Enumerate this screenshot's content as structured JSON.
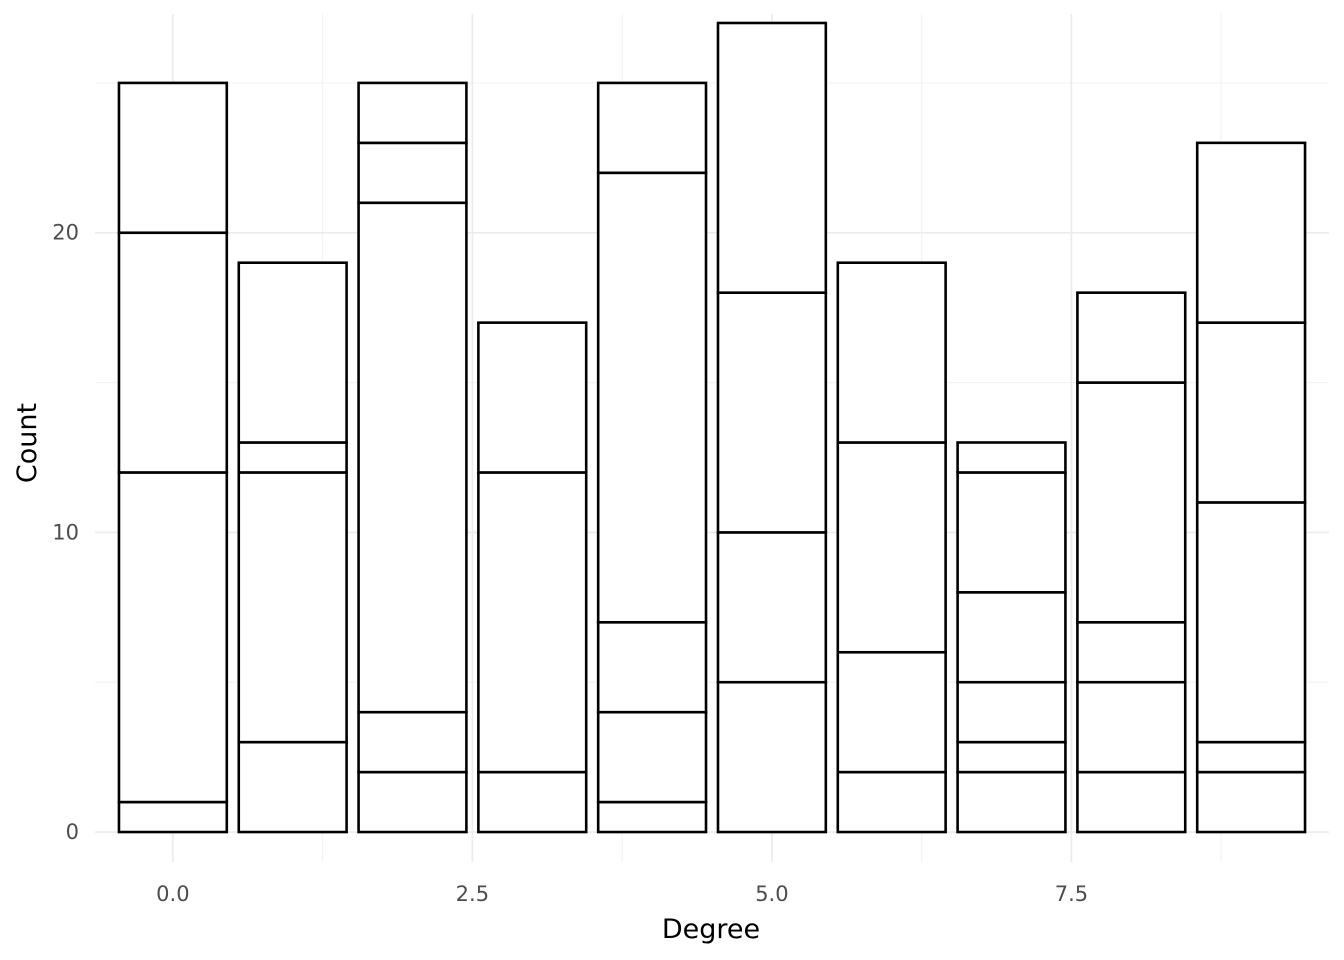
{
  "chart_data": {
    "type": "bar",
    "stacked": true,
    "title": "",
    "xlabel": "Degree",
    "ylabel": "Count",
    "x": [
      0,
      1,
      2,
      3,
      4,
      5,
      6,
      7,
      8,
      9
    ],
    "stack_segments": [
      [
        1,
        11,
        8,
        5
      ],
      [
        3,
        9,
        1,
        6
      ],
      [
        2,
        2,
        17,
        2,
        2
      ],
      [
        2,
        10,
        5
      ],
      [
        1,
        3,
        3,
        15,
        3
      ],
      [
        5,
        5,
        8,
        9
      ],
      [
        2,
        4,
        7,
        6
      ],
      [
        2,
        1,
        2,
        3,
        4,
        1
      ],
      [
        2,
        3,
        2,
        8,
        3
      ],
      [
        2,
        1,
        8,
        6,
        6
      ]
    ],
    "totals": [
      25,
      19,
      25,
      17,
      25,
      27,
      19,
      13,
      18,
      23
    ],
    "xlim": [
      -0.65,
      9.65
    ],
    "ylim": [
      -1,
      27.3
    ],
    "x_ticks": [
      0,
      2.5,
      5,
      7.5
    ],
    "x_tick_labels": [
      "0.0",
      "2.5",
      "5.0",
      "7.5"
    ],
    "y_ticks": [
      0,
      10,
      20
    ],
    "y_tick_labels": [
      "0",
      "10",
      "20"
    ],
    "grid": true,
    "legend": "none",
    "colors": {
      "fill": "#ffffff",
      "outline": "#000000",
      "grid": "#ebebeb"
    }
  }
}
